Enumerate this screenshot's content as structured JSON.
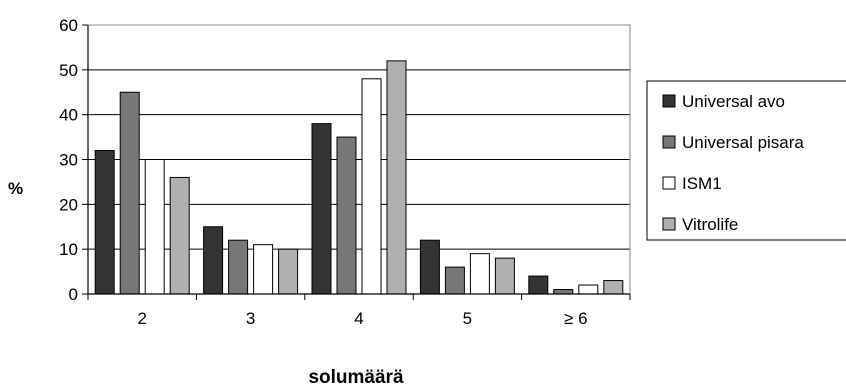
{
  "chart_data": {
    "type": "bar",
    "categories": [
      "2",
      "3",
      "4",
      "5",
      "≥ 6"
    ],
    "series": [
      {
        "name": "Universal avo",
        "values": [
          32,
          15,
          38,
          12,
          4
        ],
        "color": "#333333"
      },
      {
        "name": "Universal pisara",
        "values": [
          45,
          12,
          35,
          6,
          1
        ],
        "color": "#777777"
      },
      {
        "name": "ISM1",
        "values": [
          30,
          11,
          48,
          9,
          2
        ],
        "color": "#ffffff"
      },
      {
        "name": "Vitrolife",
        "values": [
          26,
          10,
          52,
          8,
          3
        ],
        "color": "#b0b0b0"
      }
    ],
    "title": "",
    "xlabel": "solumäärä",
    "ylabel": "%",
    "ylim": [
      0,
      60
    ],
    "yticks": [
      0,
      10,
      20,
      30,
      40,
      50,
      60
    ],
    "grid": true,
    "legend": "right"
  }
}
